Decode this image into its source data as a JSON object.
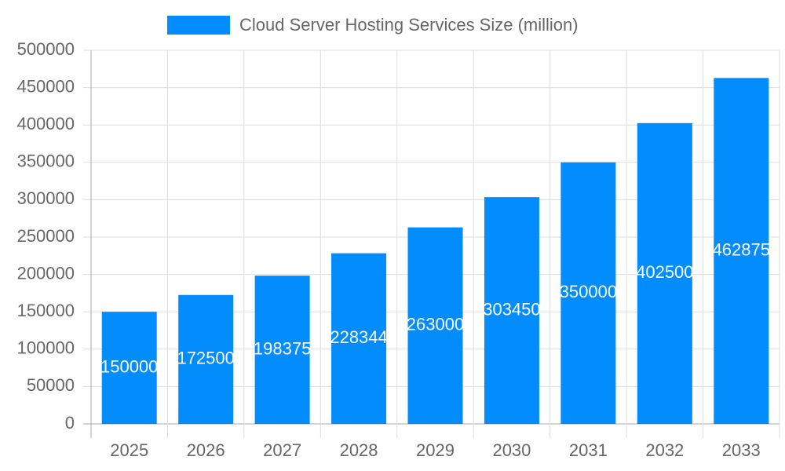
{
  "chart_data": {
    "type": "bar",
    "legend": "Cloud Server Hosting Services Size (million)",
    "categories": [
      "2025",
      "2026",
      "2027",
      "2028",
      "2029",
      "2030",
      "2031",
      "2032",
      "2033"
    ],
    "values": [
      150000,
      172500,
      198375,
      228344,
      263000,
      303450,
      350000,
      402500,
      462875
    ],
    "color": "#038cfc",
    "ylim": [
      0,
      500000
    ],
    "yticks": [
      0,
      50000,
      100000,
      150000,
      200000,
      250000,
      300000,
      350000,
      400000,
      450000,
      500000
    ],
    "grid": true
  }
}
